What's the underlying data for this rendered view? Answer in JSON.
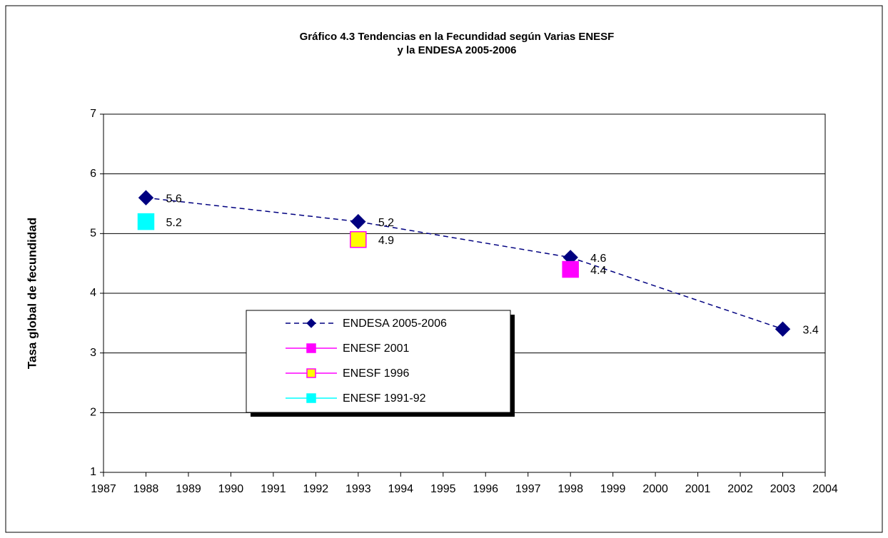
{
  "chart_data": {
    "type": "line",
    "title_lines": [
      "Gráfico 4.3 Tendencias en la Fecundidad según Varias ENESF",
      "y la ENDESA 2005-2006"
    ],
    "ylabel": "Tasa global de fecundidad",
    "xlim": [
      1987,
      2004
    ],
    "xticks": [
      1987,
      1988,
      1989,
      1990,
      1991,
      1992,
      1993,
      1994,
      1995,
      1996,
      1997,
      1998,
      1999,
      2000,
      2001,
      2002,
      2003,
      2004
    ],
    "ylim": [
      1,
      7
    ],
    "yticks": [
      1,
      2,
      3,
      4,
      5,
      6,
      7
    ],
    "grid": true,
    "series": [
      {
        "name": "ENDESA 2005-2006",
        "color": "#000080",
        "fill": "#000080",
        "marker": "diamond",
        "linestyle": "dashed",
        "x": [
          1988,
          1993,
          1998,
          2003
        ],
        "values": [
          5.6,
          5.2,
          4.6,
          3.4
        ]
      },
      {
        "name": "ENESF 2001",
        "color": "#ff00ff",
        "fill": "#ff00ff",
        "marker": "square",
        "linestyle": "none",
        "x": [
          1998
        ],
        "values": [
          4.4
        ]
      },
      {
        "name": "ENESF 1996",
        "color": "#ff00ff",
        "fill": "#ffff00",
        "marker": "square",
        "linestyle": "none",
        "x": [
          1993
        ],
        "values": [
          4.9
        ]
      },
      {
        "name": "ENESF 1991-92",
        "color": "#00ffff",
        "fill": "#00ffff",
        "marker": "square",
        "linestyle": "none",
        "x": [
          1988
        ],
        "values": [
          5.2
        ]
      }
    ]
  }
}
